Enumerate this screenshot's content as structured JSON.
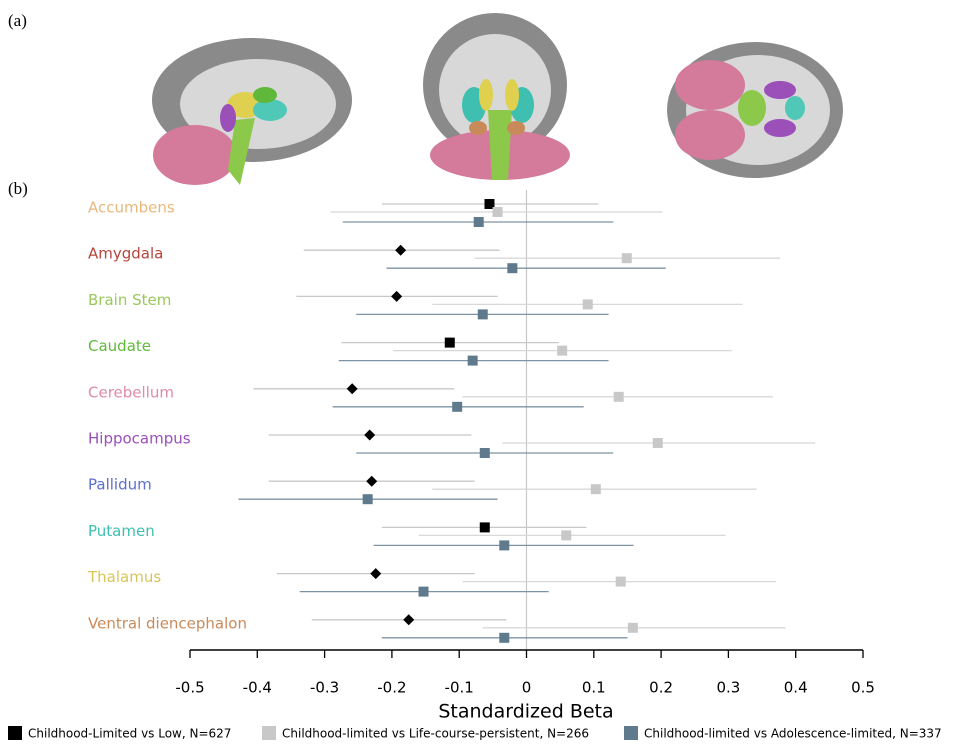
{
  "panel_labels": [
    "(a)",
    "(b)"
  ],
  "chart_data": {
    "type": "forest",
    "xlabel": "Standardized Beta",
    "categories": [
      "Accumbens",
      "Amygdala",
      "Brain Stem",
      "Caudate",
      "Cerebellum",
      "Hippocampus",
      "Pallidum",
      "Putamen",
      "Thalamus",
      "Ventral diencephalon"
    ],
    "category_colors": [
      "#e8b87a",
      "#b8453a",
      "#9ac85a",
      "#5fb83a",
      "#e08aa8",
      "#9b4fb8",
      "#5a6fd0",
      "#3fbfb0",
      "#d8c55a",
      "#c98a5a"
    ],
    "xlim": [
      -0.5,
      0.5
    ],
    "xticks": [
      -0.5,
      -0.4,
      -0.3,
      -0.2,
      -0.1,
      0,
      0.1,
      0.2,
      0.3,
      0.4,
      0.5
    ],
    "series": [
      {
        "name": "Childhood-Limited vs Low, N=627",
        "color": "#000000",
        "ci_color": "#c8c8c8",
        "markers": [
          "square",
          "diamond",
          "diamond",
          "square",
          "diamond",
          "diamond",
          "diamond",
          "square",
          "diamond",
          "diamond"
        ],
        "values": [
          -0.055,
          -0.187,
          -0.193,
          -0.114,
          -0.259,
          -0.233,
          -0.23,
          -0.062,
          -0.224,
          -0.175
        ],
        "lower": [
          -0.215,
          -0.331,
          -0.342,
          -0.275,
          -0.406,
          -0.383,
          -0.383,
          -0.215,
          -0.371,
          -0.319
        ],
        "upper": [
          0.107,
          -0.04,
          -0.043,
          0.048,
          -0.107,
          -0.082,
          -0.077,
          0.089,
          -0.077,
          -0.03
        ]
      },
      {
        "name": "Childhood-limited vs Life-course-persistent, N=266",
        "color": "#c8c8c8",
        "ci_color": "#d8d8d8",
        "markers": [
          "square",
          "square",
          "square",
          "square",
          "square",
          "square",
          "square",
          "square",
          "square",
          "square"
        ],
        "values": [
          -0.043,
          0.149,
          0.091,
          0.053,
          0.137,
          0.195,
          0.103,
          0.059,
          0.14,
          0.158
        ],
        "lower": [
          -0.291,
          -0.077,
          -0.14,
          -0.198,
          -0.095,
          -0.036,
          -0.14,
          -0.16,
          -0.095,
          -0.065
        ],
        "upper": [
          0.202,
          0.377,
          0.321,
          0.305,
          0.366,
          0.429,
          0.342,
          0.296,
          0.371,
          0.385
        ]
      },
      {
        "name": "Childhood-limited vs Adolescence-limited, N=337",
        "color": "#5f7a8c",
        "ci_color": "#7d93a3",
        "markers": [
          "square",
          "square",
          "square",
          "square",
          "square",
          "square",
          "square",
          "square",
          "square",
          "square"
        ],
        "values": [
          -0.071,
          -0.021,
          -0.065,
          -0.08,
          -0.103,
          -0.062,
          -0.236,
          -0.033,
          -0.153,
          -0.033
        ],
        "lower": [
          -0.273,
          -0.208,
          -0.253,
          -0.279,
          -0.288,
          -0.253,
          -0.428,
          -0.227,
          -0.337,
          -0.215
        ],
        "upper": [
          0.129,
          0.207,
          0.122,
          0.122,
          0.085,
          0.129,
          -0.043,
          0.159,
          0.033,
          0.15
        ]
      }
    ]
  }
}
